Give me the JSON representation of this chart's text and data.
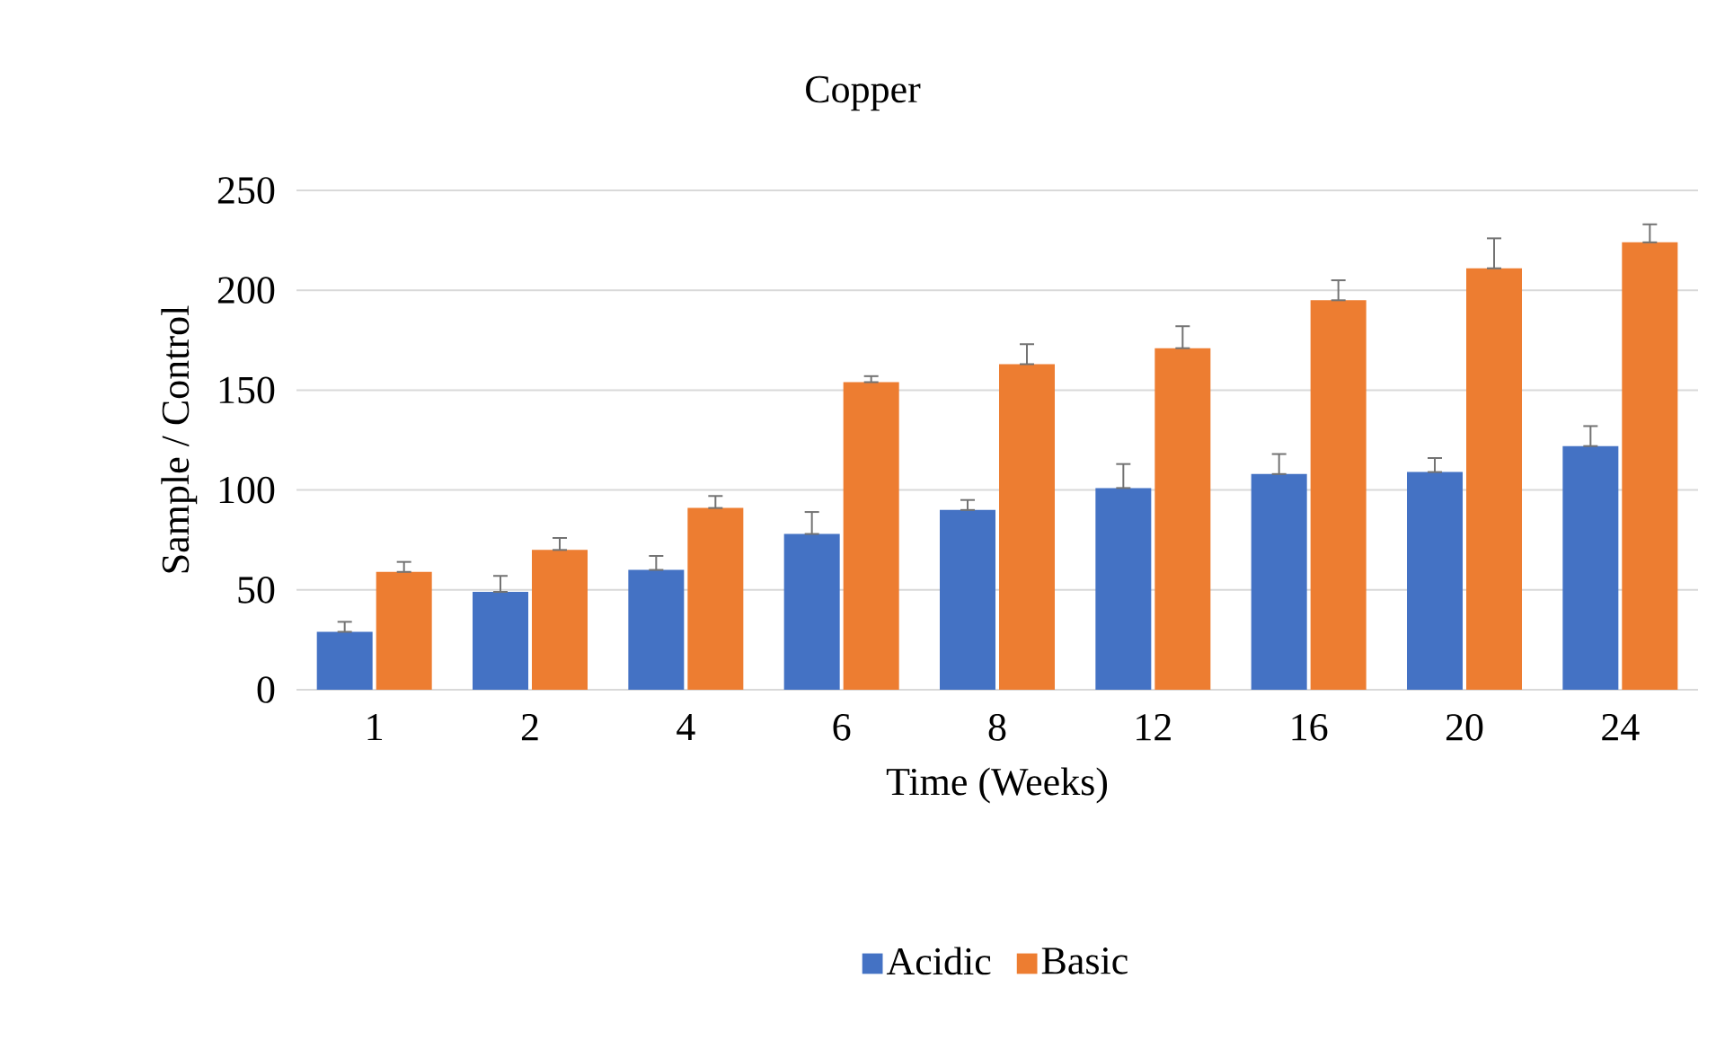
{
  "chart_data": {
    "type": "bar",
    "title": "Copper",
    "xlabel": "Time (Weeks)",
    "ylabel": "Sample / Control",
    "categories": [
      "1",
      "2",
      "4",
      "6",
      "8",
      "12",
      "16",
      "20",
      "24"
    ],
    "series": [
      {
        "name": "Acidic",
        "color": "#4472c4",
        "values": [
          29,
          49,
          60,
          78,
          90,
          101,
          108,
          109,
          122
        ],
        "errors": [
          [
            29,
            34
          ],
          [
            49,
            57
          ],
          [
            60,
            67
          ],
          [
            78,
            89
          ],
          [
            90,
            95
          ],
          [
            101,
            113
          ],
          [
            108,
            118
          ],
          [
            109,
            116
          ],
          [
            122,
            132
          ]
        ]
      },
      {
        "name": "Basic",
        "color": "#ed7d31",
        "values": [
          59,
          70,
          91,
          154,
          163,
          171,
          195,
          211,
          224
        ],
        "errors": [
          [
            59,
            64
          ],
          [
            70,
            76
          ],
          [
            91,
            97
          ],
          [
            154,
            157
          ],
          [
            163,
            173
          ],
          [
            171,
            182
          ],
          [
            195,
            205
          ],
          [
            211,
            226
          ],
          [
            224,
            233
          ]
        ]
      }
    ],
    "ylim": [
      0,
      250
    ],
    "yticks": [
      0,
      50,
      100,
      150,
      200,
      250
    ],
    "grid": "y",
    "legend": "bottom"
  }
}
